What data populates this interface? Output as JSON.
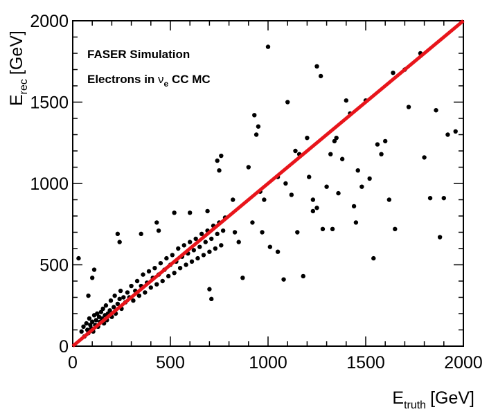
{
  "chart_data": {
    "type": "scatter",
    "title": "",
    "xlabel": {
      "base": "E",
      "sub": "truth",
      "unit": "[GeV]"
    },
    "ylabel": {
      "base": "E",
      "sub": "rec",
      "unit": "[GeV]"
    },
    "xlim": [
      0,
      2000
    ],
    "ylim": [
      0,
      2000
    ],
    "xticks": [
      0,
      500,
      1000,
      1500,
      2000
    ],
    "yticks": [
      0,
      500,
      1000,
      1500,
      2000
    ],
    "xtick_labels": [
      "0",
      "500",
      "1000",
      "1500",
      "2000"
    ],
    "ytick_labels": [
      "0",
      "500",
      "1000",
      "1500",
      "2000"
    ],
    "grid": false,
    "colors": {
      "points": "#000000",
      "line": "#e8151b",
      "frame": "#000000"
    },
    "annotations": {
      "line1": "FASER Simulation",
      "line2_prefix": "Electrons in ",
      "line2_nu": "ν",
      "line2_sub": "e",
      "line2_suffix": " CC MC"
    },
    "diagonal": {
      "name": "E_rec = E_truth",
      "x": [
        0,
        2000
      ],
      "y": [
        0,
        2000
      ]
    },
    "series": [
      {
        "name": "Electrons in νe CC MC",
        "points": [
          [
            30,
            540
          ],
          [
            45,
            90
          ],
          [
            55,
            120
          ],
          [
            60,
            60
          ],
          [
            70,
            140
          ],
          [
            75,
            100
          ],
          [
            80,
            80
          ],
          [
            85,
            170
          ],
          [
            90,
            130
          ],
          [
            95,
            110
          ],
          [
            100,
            150
          ],
          [
            105,
            90
          ],
          [
            110,
            190
          ],
          [
            115,
            130
          ],
          [
            120,
            160
          ],
          [
            125,
            200
          ],
          [
            130,
            120
          ],
          [
            135,
            180
          ],
          [
            140,
            150
          ],
          [
            145,
            210
          ],
          [
            150,
            170
          ],
          [
            155,
            230
          ],
          [
            160,
            140
          ],
          [
            165,
            190
          ],
          [
            170,
            250
          ],
          [
            175,
            160
          ],
          [
            180,
            200
          ],
          [
            190,
            220
          ],
          [
            195,
            280
          ],
          [
            200,
            180
          ],
          [
            210,
            240
          ],
          [
            215,
            310
          ],
          [
            220,
            200
          ],
          [
            230,
            260
          ],
          [
            240,
            290
          ],
          [
            245,
            340
          ],
          [
            250,
            230
          ],
          [
            260,
            300
          ],
          [
            270,
            270
          ],
          [
            280,
            330
          ],
          [
            290,
            300
          ],
          [
            300,
            370
          ],
          [
            310,
            280
          ],
          [
            320,
            340
          ],
          [
            330,
            400
          ],
          [
            340,
            310
          ],
          [
            350,
            370
          ],
          [
            360,
            440
          ],
          [
            370,
            330
          ],
          [
            380,
            390
          ],
          [
            390,
            460
          ],
          [
            400,
            360
          ],
          [
            410,
            420
          ],
          [
            420,
            480
          ],
          [
            430,
            380
          ],
          [
            440,
            440
          ],
          [
            450,
            510
          ],
          [
            460,
            400
          ],
          [
            470,
            470
          ],
          [
            480,
            540
          ],
          [
            490,
            430
          ],
          [
            500,
            500
          ],
          [
            510,
            560
          ],
          [
            520,
            450
          ],
          [
            530,
            520
          ],
          [
            540,
            600
          ],
          [
            550,
            480
          ],
          [
            560,
            550
          ],
          [
            570,
            620
          ],
          [
            580,
            500
          ],
          [
            590,
            570
          ],
          [
            600,
            640
          ],
          [
            610,
            520
          ],
          [
            620,
            590
          ],
          [
            630,
            660
          ],
          [
            640,
            540
          ],
          [
            650,
            610
          ],
          [
            660,
            690
          ],
          [
            670,
            560
          ],
          [
            680,
            640
          ],
          [
            690,
            710
          ],
          [
            700,
            580
          ],
          [
            710,
            660
          ],
          [
            720,
            740
          ],
          [
            730,
            600
          ],
          [
            740,
            690
          ],
          [
            750,
            760
          ],
          [
            760,
            620
          ],
          [
            770,
            710
          ],
          [
            780,
            790
          ],
          [
            80,
            310
          ],
          [
            100,
            420
          ],
          [
            110,
            470
          ],
          [
            230,
            690
          ],
          [
            240,
            640
          ],
          [
            350,
            690
          ],
          [
            430,
            760
          ],
          [
            440,
            710
          ],
          [
            520,
            820
          ],
          [
            600,
            820
          ],
          [
            690,
            830
          ],
          [
            700,
            350
          ],
          [
            710,
            290
          ],
          [
            740,
            1140
          ],
          [
            760,
            1170
          ],
          [
            750,
            1080
          ],
          [
            820,
            900
          ],
          [
            830,
            700
          ],
          [
            850,
            640
          ],
          [
            870,
            420
          ],
          [
            900,
            1100
          ],
          [
            920,
            760
          ],
          [
            930,
            1420
          ],
          [
            940,
            1300
          ],
          [
            950,
            1350
          ],
          [
            960,
            950
          ],
          [
            970,
            700
          ],
          [
            980,
            900
          ],
          [
            1000,
            1840
          ],
          [
            1010,
            610
          ],
          [
            1050,
            580
          ],
          [
            1080,
            410
          ],
          [
            1090,
            1000
          ],
          [
            1100,
            1500
          ],
          [
            1120,
            930
          ],
          [
            1140,
            1200
          ],
          [
            1160,
            1180
          ],
          [
            1180,
            430
          ],
          [
            1200,
            1280
          ],
          [
            1210,
            1040
          ],
          [
            1230,
            900
          ],
          [
            1250,
            850
          ],
          [
            1270,
            1660
          ],
          [
            1280,
            720
          ],
          [
            1300,
            980
          ],
          [
            1320,
            1180
          ],
          [
            1340,
            1260
          ],
          [
            1350,
            1280
          ],
          [
            1360,
            940
          ],
          [
            1380,
            1150
          ],
          [
            1400,
            1510
          ],
          [
            1420,
            1430
          ],
          [
            1440,
            860
          ],
          [
            1460,
            1080
          ],
          [
            1480,
            980
          ],
          [
            1500,
            1510
          ],
          [
            1520,
            1030
          ],
          [
            1540,
            540
          ],
          [
            1560,
            1240
          ],
          [
            1580,
            1180
          ],
          [
            1600,
            1260
          ],
          [
            1620,
            900
          ],
          [
            1640,
            1680
          ],
          [
            1650,
            720
          ],
          [
            1700,
            1700
          ],
          [
            1720,
            1470
          ],
          [
            1780,
            1800
          ],
          [
            1800,
            1160
          ],
          [
            1830,
            910
          ],
          [
            1860,
            1450
          ],
          [
            1880,
            670
          ],
          [
            1900,
            910
          ],
          [
            1920,
            1300
          ],
          [
            1960,
            1320
          ],
          [
            1250,
            1720
          ],
          [
            1050,
            1040
          ],
          [
            1150,
            700
          ],
          [
            1230,
            830
          ],
          [
            1330,
            720
          ],
          [
            1450,
            760
          ]
        ]
      }
    ]
  }
}
